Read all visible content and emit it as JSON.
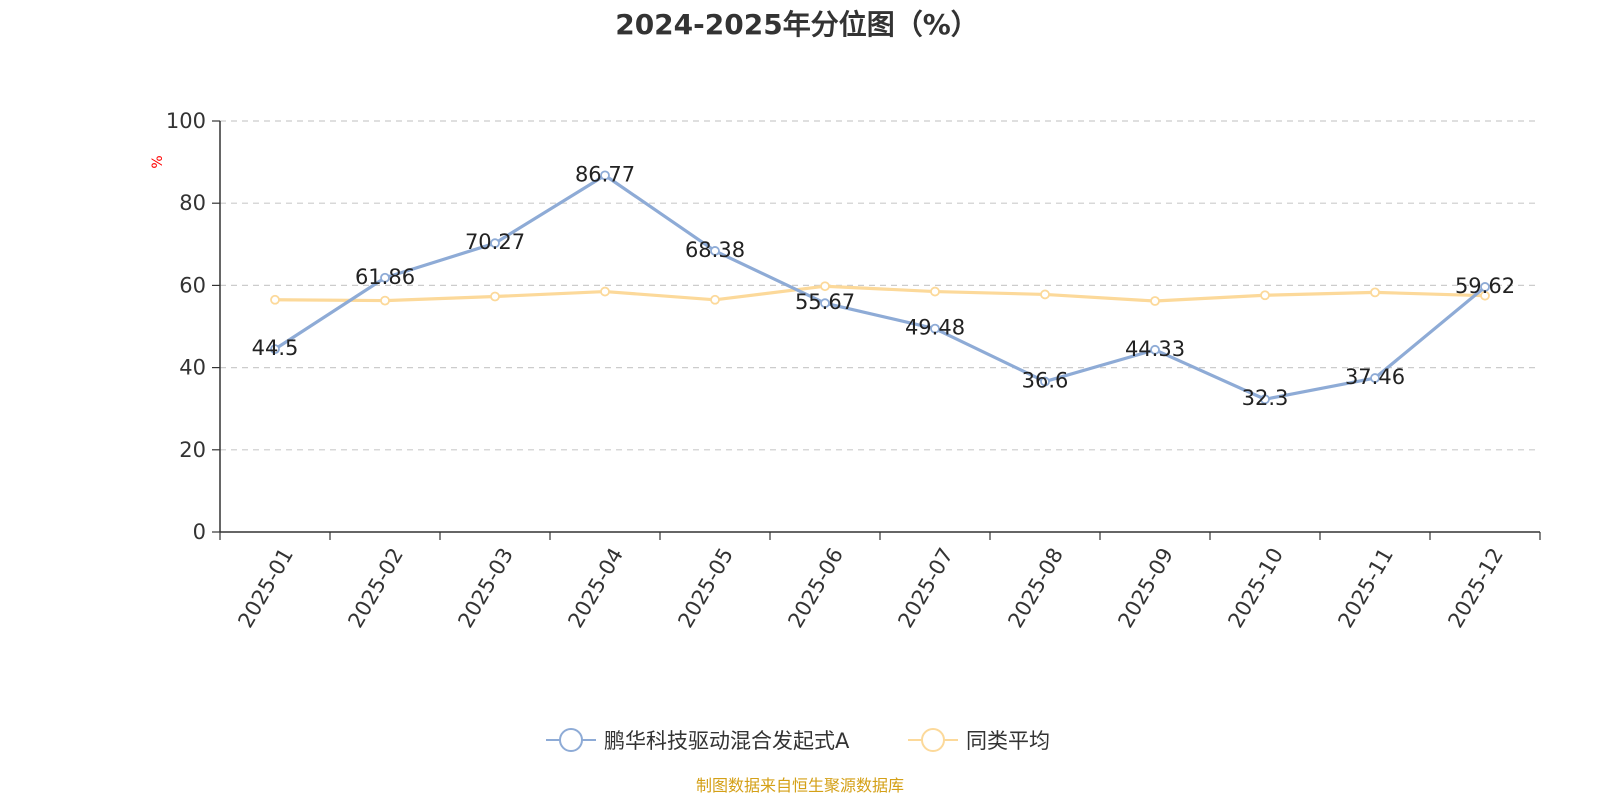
{
  "chart_data": {
    "type": "line",
    "title": "2024-2025年分位图（%）",
    "ylabel": "%",
    "xlabel": "",
    "ylim": [
      0,
      100
    ],
    "yticks": [
      0,
      20,
      40,
      60,
      80,
      100
    ],
    "grid": true,
    "legend_position": "bottom-center",
    "categories": [
      "2025-01",
      "2025-02",
      "2025-03",
      "2025-04",
      "2025-05",
      "2025-06",
      "2025-07",
      "2025-08",
      "2025-09",
      "2025-10",
      "2025-11",
      "2025-12"
    ],
    "series": [
      {
        "name": "鹏华科技驱动混合发起式A",
        "color": "#8eabd6",
        "values": [
          44.5,
          61.86,
          70.27,
          86.77,
          68.38,
          55.67,
          49.48,
          36.6,
          44.33,
          32.3,
          37.46,
          59.62
        ],
        "labels": [
          "44.5",
          "61.86",
          "70.27",
          "86.77",
          "68.38",
          "55.67",
          "49.48",
          "36.6",
          "44.33",
          "32.3",
          "37.46",
          "59.62"
        ]
      },
      {
        "name": "同类平均",
        "color": "#fcd99a",
        "values": [
          56.5,
          56.3,
          57.3,
          58.5,
          56.5,
          59.8,
          58.5,
          57.8,
          56.2,
          57.6,
          58.3,
          57.5
        ]
      }
    ]
  },
  "source": "制图数据来自恒生聚源数据库",
  "colors": {
    "unit_label": "#ff0000",
    "source": "#d4a017",
    "axis": "#333333",
    "grid": "#cccccc"
  }
}
